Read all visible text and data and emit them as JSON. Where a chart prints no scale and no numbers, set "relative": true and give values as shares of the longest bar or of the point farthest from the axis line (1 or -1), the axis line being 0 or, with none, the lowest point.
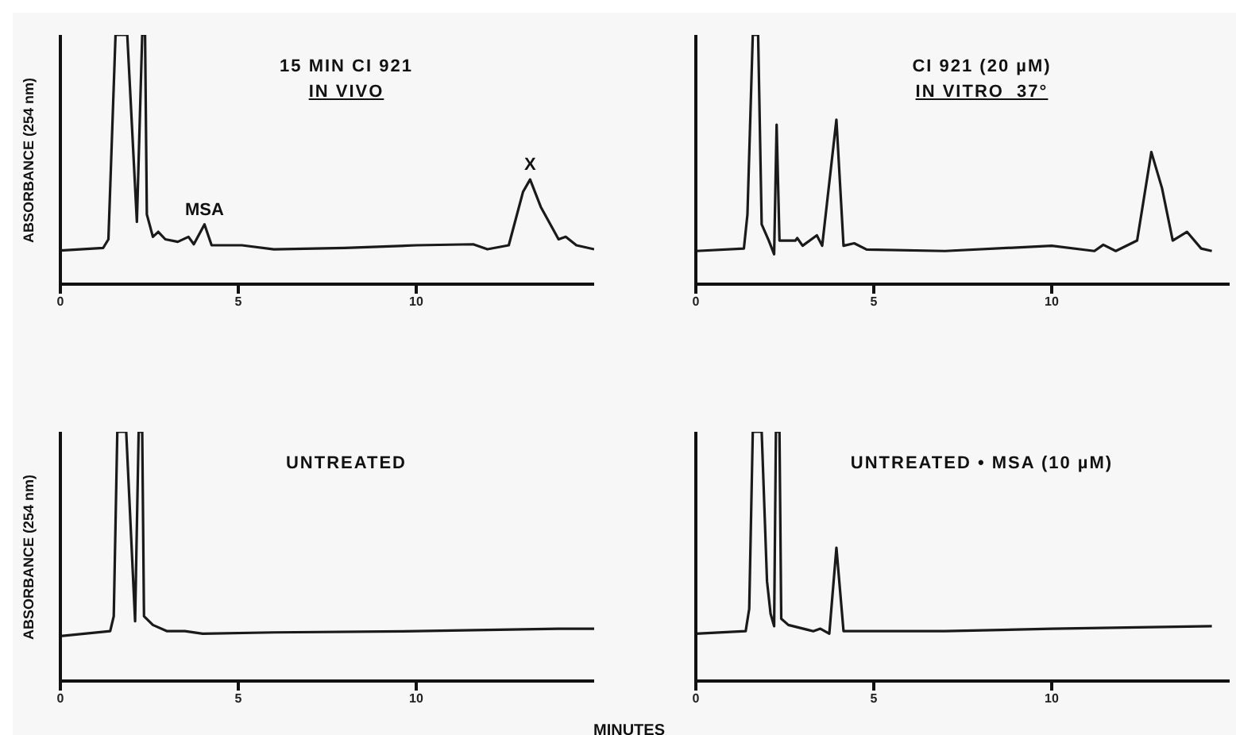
{
  "chart_data": [
    {
      "type": "line",
      "title": "15 MIN  CI 921",
      "subtitle": "IN VIVO",
      "ylabel": "ABSORBANCE (254 nm)",
      "relative": true,
      "tick_labels": "x",
      "xlim": [
        0,
        15
      ],
      "xticks": [
        0,
        5,
        10
      ],
      "x": [
        0,
        1.2,
        1.35,
        1.55,
        1.88,
        2.15,
        2.3,
        2.38,
        2.43,
        2.6,
        2.75,
        2.95,
        3.3,
        3.6,
        3.75,
        4.05,
        4.25,
        5.1,
        6,
        8,
        10,
        11.6,
        12,
        12.6,
        13,
        13.2,
        13.5,
        14,
        14.2,
        14.5,
        15
      ],
      "series": [
        {
          "color": "#1a1a1a",
          "values": [
            0.135,
            0.145,
            0.18,
            1,
            1,
            0.25,
            1,
            1,
            0.28,
            0.19,
            0.21,
            0.18,
            0.17,
            0.19,
            0.16,
            0.24,
            0.156,
            0.156,
            0.14,
            0.145,
            0.156,
            0.16,
            0.14,
            0.156,
            0.37,
            0.42,
            0.31,
            0.18,
            0.19,
            0.156,
            0.14
          ]
        }
      ],
      "annotations": [
        {
          "text": "MSA",
          "x": 4.05,
          "y": 0.24
        },
        {
          "text": "X",
          "x": 13.2,
          "y": 0.42
        }
      ]
    },
    {
      "type": "line",
      "title": "CI 921 (20 µM)",
      "subtitle": "IN VITRO  37°",
      "relative": true,
      "tick_labels": "x",
      "xlim": [
        0,
        15
      ],
      "xticks": [
        0,
        5,
        10
      ],
      "x": [
        0,
        1.35,
        1.45,
        1.6,
        1.75,
        1.85,
        2.05,
        2.2,
        2.27,
        2.35,
        2.8,
        2.85,
        3,
        3.4,
        3.55,
        3.95,
        4.15,
        4.45,
        4.8,
        7,
        10,
        11.2,
        11.45,
        11.8,
        12.4,
        12.8,
        13.1,
        13.4,
        13.8,
        14.2,
        14.5
      ],
      "series": [
        {
          "color": "#1a1a1a",
          "values": [
            0.133,
            0.143,
            0.28,
            1,
            1,
            0.24,
            0.175,
            0.12,
            0.64,
            0.175,
            0.175,
            0.185,
            0.154,
            0.196,
            0.154,
            0.66,
            0.154,
            0.164,
            0.139,
            0.133,
            0.154,
            0.133,
            0.158,
            0.133,
            0.175,
            0.53,
            0.385,
            0.175,
            0.21,
            0.143,
            0.133
          ]
        }
      ]
    },
    {
      "type": "line",
      "title": "UNTREATED",
      "ylabel": "ABSORBANCE (254 nm)",
      "xlabel": "MINUTES",
      "relative": true,
      "tick_labels": "x",
      "xlim": [
        0,
        15
      ],
      "xticks": [
        0,
        5,
        10
      ],
      "x": [
        0,
        1.4,
        1.5,
        1.6,
        1.75,
        1.85,
        2.1,
        2.2,
        2.3,
        2.35,
        2.6,
        3,
        3.5,
        4,
        6,
        10,
        14,
        15
      ],
      "series": [
        {
          "color": "#1a1a1a",
          "values": [
            0.18,
            0.2,
            0.26,
            1,
            1,
            1,
            0.24,
            1,
            1,
            0.26,
            0.225,
            0.2,
            0.2,
            0.19,
            0.195,
            0.2,
            0.21,
            0.21
          ]
        }
      ]
    },
    {
      "type": "line",
      "title": "UNTREATED • MSA  (10 µM)",
      "relative": true,
      "tick_labels": "x",
      "xlim": [
        0,
        15
      ],
      "xticks": [
        0,
        5,
        10
      ],
      "x": [
        0,
        1.4,
        1.5,
        1.6,
        1.85,
        2,
        2.1,
        2.2,
        2.25,
        2.35,
        2.4,
        2.6,
        3.3,
        3.5,
        3.75,
        3.95,
        4.15,
        4.4,
        7,
        10,
        14.5
      ],
      "series": [
        {
          "color": "#1a1a1a",
          "values": [
            0.19,
            0.2,
            0.29,
            1,
            1,
            0.4,
            0.27,
            0.22,
            1,
            1,
            0.25,
            0.225,
            0.2,
            0.21,
            0.19,
            0.535,
            0.2,
            0.2,
            0.2,
            0.21,
            0.22
          ]
        }
      ]
    }
  ]
}
